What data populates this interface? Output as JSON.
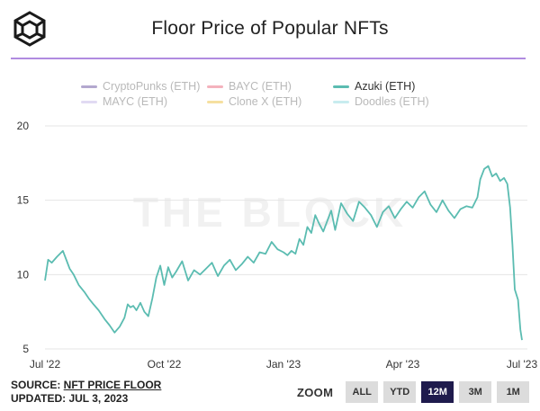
{
  "header": {
    "title": "Floor Price of Popular NFTs"
  },
  "colors": {
    "accent_rule": "#b08be0",
    "azuki_line": "#5bbcb1",
    "zoom_selected": "#1f1b4d"
  },
  "legend": {
    "items": [
      {
        "label": "CryptoPunks (ETH)",
        "color": "#b3a8cf",
        "active": false
      },
      {
        "label": "BAYC (ETH)",
        "color": "#f4b2bd",
        "active": false
      },
      {
        "label": "Azuki (ETH)",
        "color": "#5bbcb1",
        "active": true
      },
      {
        "label": "MAYC (ETH)",
        "color": "#e1daf3",
        "active": false
      },
      {
        "label": "Clone X (ETH)",
        "color": "#f6e0a0",
        "active": false
      },
      {
        "label": "Doodles (ETH)",
        "color": "#c8ecef",
        "active": false
      }
    ]
  },
  "chart_data": {
    "type": "line",
    "title": "Floor Price of Popular NFTs",
    "watermark": "THE BLOCK",
    "xlabel": "",
    "ylabel": "",
    "ylim": [
      5,
      20
    ],
    "yticks": [
      5,
      10,
      15,
      20
    ],
    "grid": true,
    "legend_position": "top-center",
    "xticks": [
      {
        "label": "Jul '22",
        "month": 0
      },
      {
        "label": "Oct '22",
        "month": 3
      },
      {
        "label": "Jan '23",
        "month": 6
      },
      {
        "label": "Apr '23",
        "month": 9
      },
      {
        "label": "Jul '23",
        "month": 12
      }
    ],
    "series": [
      {
        "name": "Azuki (ETH)",
        "x_months": [
          0,
          0.08,
          0.17,
          0.3,
          0.45,
          0.55,
          0.62,
          0.72,
          0.85,
          1.0,
          1.1,
          1.22,
          1.35,
          1.5,
          1.62,
          1.75,
          1.88,
          2.0,
          2.08,
          2.15,
          2.22,
          2.3,
          2.4,
          2.5,
          2.6,
          2.7,
          2.8,
          2.9,
          3.0,
          3.1,
          3.2,
          3.3,
          3.45,
          3.6,
          3.75,
          3.9,
          4.05,
          4.2,
          4.35,
          4.5,
          4.65,
          4.8,
          4.95,
          5.1,
          5.25,
          5.4,
          5.55,
          5.7,
          5.85,
          6.0,
          6.1,
          6.2,
          6.3,
          6.4,
          6.5,
          6.6,
          6.7,
          6.8,
          6.9,
          7.0,
          7.1,
          7.2,
          7.3,
          7.45,
          7.6,
          7.75,
          7.9,
          8.05,
          8.2,
          8.35,
          8.5,
          8.65,
          8.8,
          8.95,
          9.1,
          9.25,
          9.4,
          9.55,
          9.7,
          9.85,
          10.0,
          10.15,
          10.3,
          10.45,
          10.6,
          10.75,
          10.88,
          10.95,
          11.05,
          11.15,
          11.25,
          11.35,
          11.45,
          11.55,
          11.63,
          11.7,
          11.76,
          11.82,
          11.9,
          11.96,
          12.0
        ],
        "values": [
          9.6,
          11.0,
          10.8,
          11.2,
          11.6,
          10.9,
          10.4,
          10.0,
          9.3,
          8.8,
          8.4,
          8.0,
          7.6,
          7.0,
          6.6,
          6.1,
          6.5,
          7.1,
          8.0,
          7.8,
          7.9,
          7.6,
          8.1,
          7.5,
          7.2,
          8.4,
          9.8,
          10.6,
          9.3,
          10.5,
          9.8,
          10.2,
          10.9,
          9.6,
          10.3,
          10.0,
          10.4,
          10.8,
          9.9,
          10.6,
          11.0,
          10.3,
          10.7,
          11.2,
          10.8,
          11.5,
          11.4,
          12.2,
          11.7,
          11.5,
          11.3,
          11.6,
          11.4,
          12.4,
          12.0,
          13.2,
          12.8,
          14.0,
          13.4,
          12.9,
          13.6,
          14.3,
          13.0,
          14.8,
          14.1,
          13.6,
          14.9,
          14.5,
          14.0,
          13.2,
          14.2,
          14.6,
          13.8,
          14.4,
          14.9,
          14.5,
          15.2,
          15.6,
          14.7,
          14.2,
          15.0,
          14.3,
          13.8,
          14.4,
          14.6,
          14.5,
          15.2,
          16.4,
          17.1,
          17.3,
          16.6,
          16.8,
          16.3,
          16.5,
          16.1,
          14.5,
          12.0,
          9.0,
          8.3,
          6.3,
          5.6
        ]
      }
    ]
  },
  "footer": {
    "source_prefix": "SOURCE: ",
    "source_link": "NFT PRICE FLOOR",
    "updated": "UPDATED: JUL 3, 2023"
  },
  "zoom": {
    "label": "ZOOM",
    "buttons": [
      "ALL",
      "YTD",
      "12M",
      "3M",
      "1M"
    ],
    "selected": "12M"
  }
}
